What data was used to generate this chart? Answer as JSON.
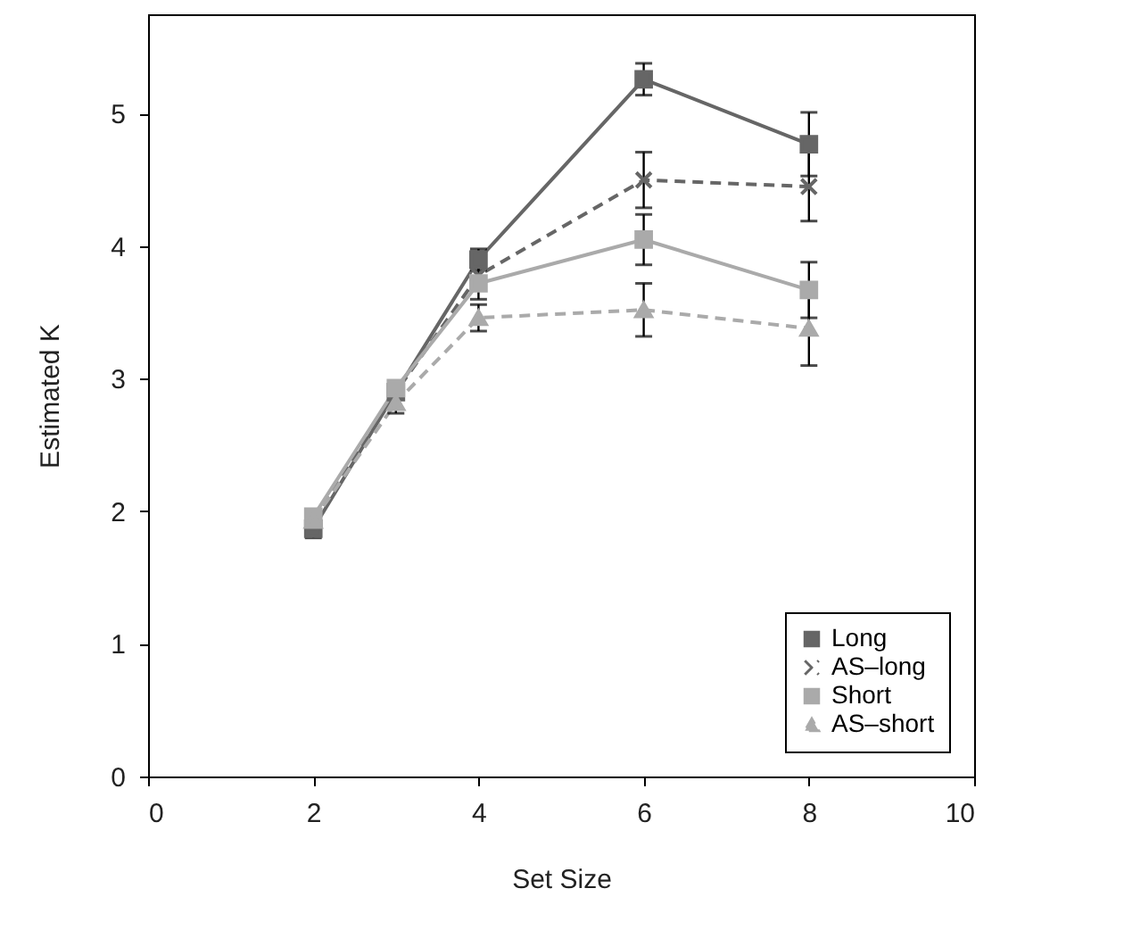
{
  "chart_data": {
    "type": "line",
    "xlabel": "Set Size",
    "ylabel": "Estimated K",
    "x": [
      2,
      3,
      4,
      6,
      8
    ],
    "xlim": [
      0,
      10
    ],
    "xticks": [
      0,
      2,
      4,
      6,
      8,
      10
    ],
    "ylim": [
      0,
      5.75
    ],
    "yticks": [
      0,
      1,
      2,
      3,
      4,
      5
    ],
    "grid": false,
    "legend": "bottom right",
    "series": [
      {
        "name": "Long",
        "color": "#666666",
        "marker": "square",
        "line_style": "solid",
        "values": [
          1.87,
          2.9,
          3.9,
          5.26,
          4.77
        ],
        "errors": [
          0.07,
          null,
          0.08,
          0.12,
          0.24
        ]
      },
      {
        "name": "AS–long",
        "color": "#666666",
        "marker": "cross",
        "line_style": "dashed",
        "values": [
          1.93,
          2.9,
          3.78,
          4.5,
          4.45
        ],
        "errors": [
          null,
          null,
          0.18,
          0.21,
          0.26
        ]
      },
      {
        "name": "Short",
        "color": "#aaaaaa",
        "marker": "square",
        "line_style": "solid",
        "values": [
          1.96,
          2.93,
          3.72,
          4.05,
          3.67
        ],
        "errors": [
          null,
          null,
          null,
          0.19,
          0.21
        ]
      },
      {
        "name": "AS–short",
        "color": "#aaaaaa",
        "marker": "triangle",
        "line_style": "dashed",
        "values": [
          1.93,
          2.82,
          3.46,
          3.52,
          3.38
        ],
        "errors": [
          null,
          0.08,
          0.1,
          0.2,
          0.28
        ]
      }
    ]
  }
}
